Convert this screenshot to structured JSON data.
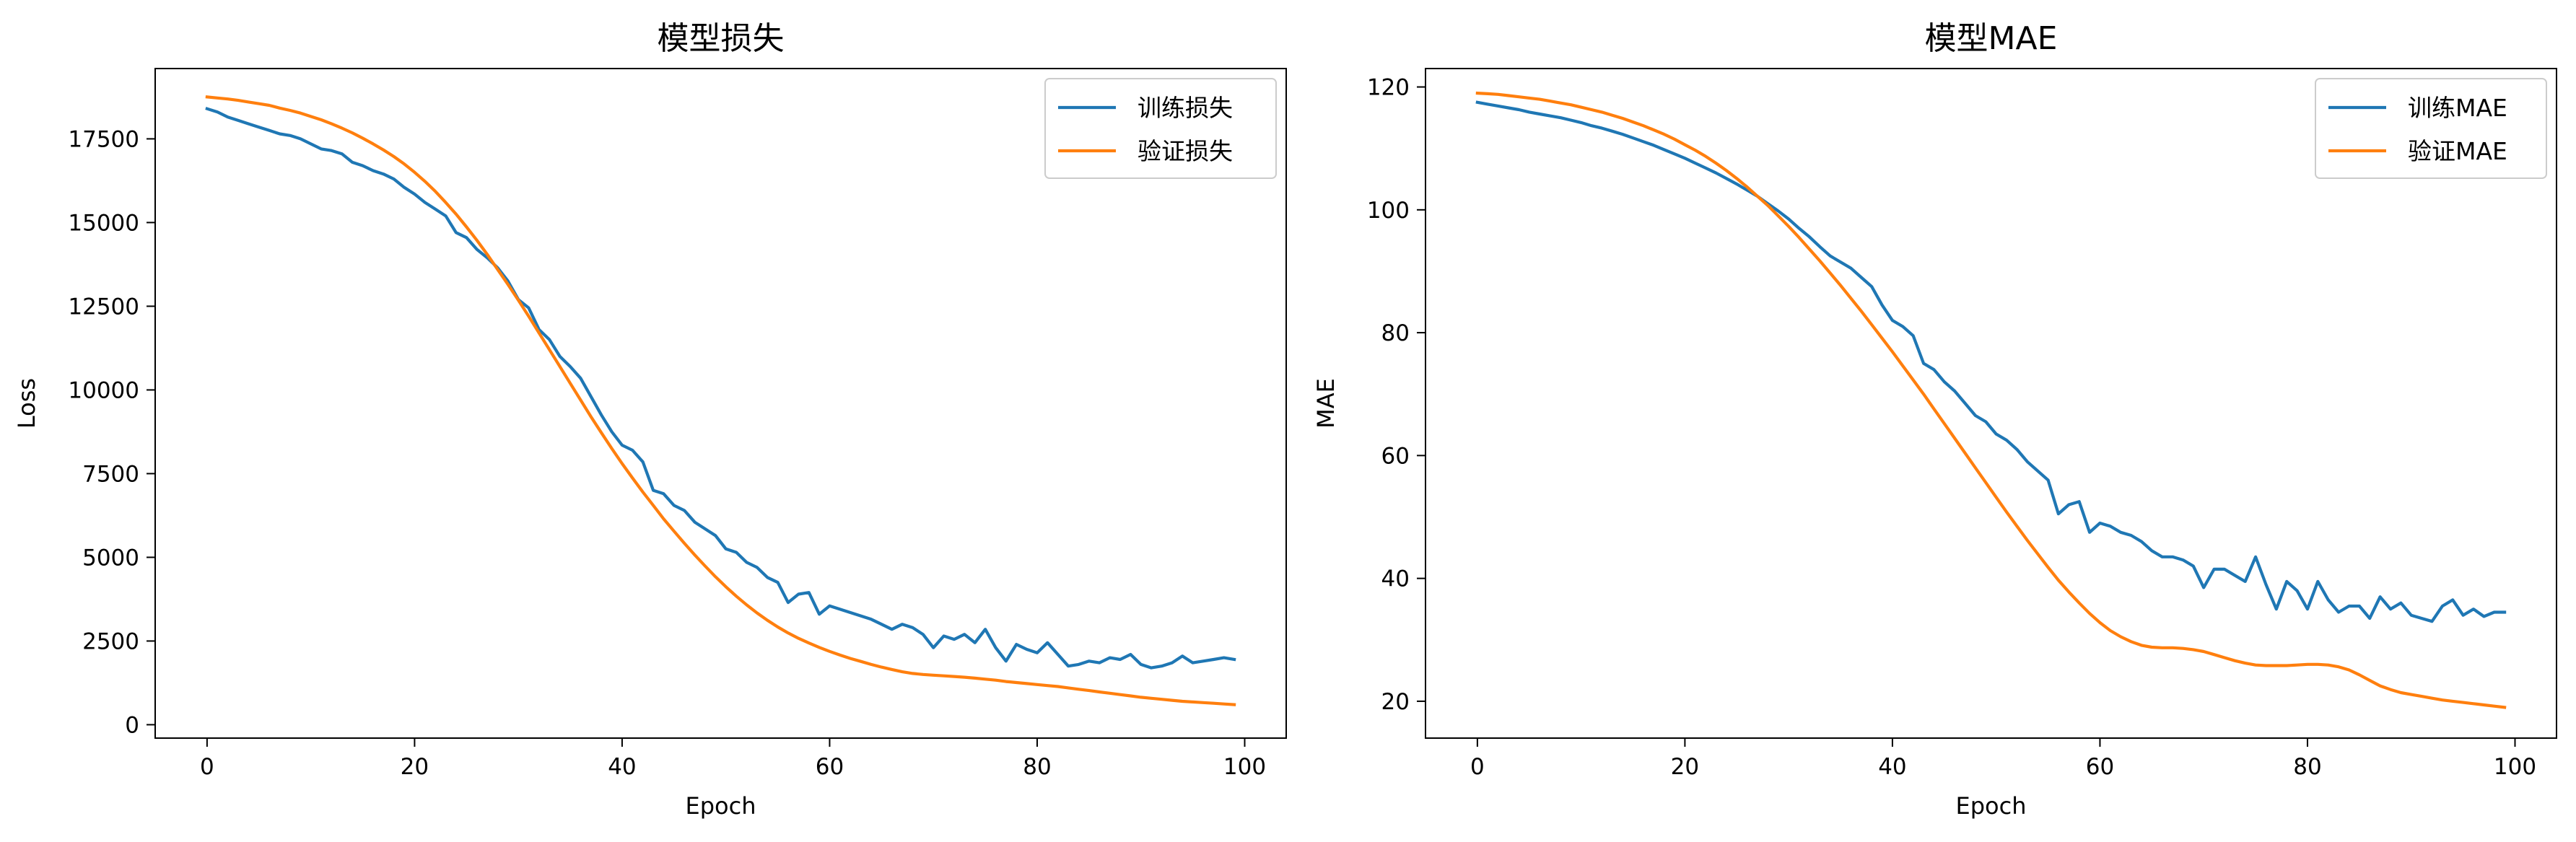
{
  "chart_data": [
    {
      "type": "line",
      "title": "模型损失",
      "xlabel": "Epoch",
      "ylabel": "Loss",
      "xlim": [
        -5,
        104
      ],
      "ylim": [
        -400,
        19600
      ],
      "xticks": [
        0,
        20,
        40,
        60,
        80,
        100
      ],
      "yticks": [
        0,
        2500,
        5000,
        7500,
        10000,
        12500,
        15000,
        17500
      ],
      "grid": false,
      "legend": "top-right",
      "series": [
        {
          "name": "训练损失",
          "color": "#1f77b4",
          "x_start": 0,
          "values": [
            18400,
            18300,
            18150,
            18050,
            17950,
            17850,
            17750,
            17650,
            17600,
            17500,
            17350,
            17200,
            17150,
            17050,
            16800,
            16700,
            16550,
            16450,
            16300,
            16050,
            15850,
            15600,
            15400,
            15200,
            14700,
            14550,
            14200,
            13950,
            13650,
            13250,
            12700,
            12450,
            11800,
            11500,
            11000,
            10700,
            10350,
            9800,
            9250,
            8750,
            8350,
            8200,
            7850,
            7000,
            6900,
            6550,
            6400,
            6050,
            5850,
            5650,
            5250,
            5150,
            4850,
            4700,
            4400,
            4250,
            3650,
            3900,
            3950,
            3300,
            3550,
            3450,
            3350,
            3250,
            3150,
            3000,
            2850,
            3000,
            2900,
            2700,
            2300,
            2650,
            2550,
            2700,
            2450,
            2850,
            2300,
            1900,
            2400,
            2250,
            2150,
            2450,
            2100,
            1750,
            1800,
            1900,
            1850,
            2000,
            1950,
            2100,
            1800,
            1700,
            1750,
            1850,
            2050,
            1850,
            1900,
            1950,
            2000,
            1950
          ]
        },
        {
          "name": "验证损失",
          "color": "#ff7f0e",
          "x_start": 0,
          "values": [
            18750,
            18720,
            18690,
            18650,
            18600,
            18550,
            18500,
            18420,
            18350,
            18270,
            18170,
            18070,
            17950,
            17820,
            17680,
            17520,
            17350,
            17170,
            16970,
            16750,
            16500,
            16230,
            15930,
            15600,
            15250,
            14870,
            14470,
            14050,
            13600,
            13150,
            12680,
            12200,
            11700,
            11200,
            10700,
            10200,
            9700,
            9200,
            8720,
            8250,
            7800,
            7370,
            6950,
            6550,
            6150,
            5780,
            5420,
            5070,
            4740,
            4420,
            4120,
            3840,
            3580,
            3340,
            3120,
            2920,
            2740,
            2580,
            2440,
            2310,
            2190,
            2080,
            1980,
            1890,
            1800,
            1720,
            1650,
            1580,
            1530,
            1500,
            1480,
            1460,
            1440,
            1420,
            1390,
            1360,
            1330,
            1290,
            1260,
            1230,
            1200,
            1170,
            1140,
            1100,
            1060,
            1020,
            980,
            940,
            900,
            860,
            820,
            790,
            760,
            730,
            700,
            680,
            660,
            640,
            620,
            600
          ]
        }
      ]
    },
    {
      "type": "line",
      "title": "模型MAE",
      "xlabel": "Epoch",
      "ylabel": "MAE",
      "xlim": [
        -5,
        104
      ],
      "ylim": [
        14,
        123
      ],
      "xticks": [
        0,
        20,
        40,
        60,
        80,
        100
      ],
      "yticks": [
        20,
        40,
        60,
        80,
        100,
        120
      ],
      "grid": false,
      "legend": "top-right",
      "series": [
        {
          "name": "训练MAE",
          "color": "#1f77b4",
          "x_start": 0,
          "values": [
            117.5,
            117.2,
            116.9,
            116.6,
            116.3,
            115.9,
            115.6,
            115.3,
            115.0,
            114.6,
            114.2,
            113.7,
            113.3,
            112.8,
            112.3,
            111.7,
            111.1,
            110.5,
            109.8,
            109.1,
            108.4,
            107.6,
            106.8,
            106.0,
            105.1,
            104.2,
            103.2,
            102.2,
            101.0,
            99.8,
            98.5,
            97.0,
            95.6,
            94.0,
            92.5,
            91.5,
            90.5,
            89.0,
            87.5,
            84.5,
            82.0,
            81.0,
            79.5,
            75.0,
            74.0,
            72.0,
            70.5,
            68.5,
            66.5,
            65.5,
            63.5,
            62.5,
            61.0,
            59.0,
            57.5,
            56.0,
            50.5,
            52.0,
            52.5,
            47.5,
            49.0,
            48.5,
            47.5,
            47.0,
            46.0,
            44.5,
            43.5,
            43.5,
            43.0,
            42.0,
            38.5,
            41.5,
            41.5,
            40.5,
            39.5,
            43.5,
            39.0,
            35.0,
            39.5,
            38.0,
            35.0,
            39.5,
            36.5,
            34.5,
            35.5,
            35.5,
            33.5,
            37.0,
            35.0,
            36.0,
            34.0,
            33.5,
            33.0,
            35.5,
            36.5,
            34.0,
            35.0,
            33.8,
            34.5,
            34.5
          ]
        },
        {
          "name": "验证MAE",
          "color": "#ff7f0e",
          "x_start": 0,
          "values": [
            119.0,
            118.9,
            118.8,
            118.6,
            118.4,
            118.2,
            118.0,
            117.7,
            117.4,
            117.1,
            116.7,
            116.3,
            115.9,
            115.4,
            114.9,
            114.3,
            113.7,
            113.0,
            112.3,
            111.5,
            110.6,
            109.7,
            108.7,
            107.6,
            106.4,
            105.1,
            103.7,
            102.2,
            100.7,
            99.0,
            97.3,
            95.5,
            93.6,
            91.7,
            89.7,
            87.7,
            85.6,
            83.5,
            81.3,
            79.1,
            76.9,
            74.6,
            72.3,
            70.0,
            67.6,
            65.2,
            62.8,
            60.4,
            58.0,
            55.6,
            53.2,
            50.8,
            48.5,
            46.2,
            44.0,
            41.8,
            39.7,
            37.8,
            36.0,
            34.3,
            32.8,
            31.5,
            30.5,
            29.7,
            29.1,
            28.8,
            28.7,
            28.7,
            28.6,
            28.4,
            28.1,
            27.6,
            27.1,
            26.6,
            26.2,
            25.9,
            25.8,
            25.8,
            25.8,
            25.9,
            26.0,
            26.0,
            25.9,
            25.6,
            25.1,
            24.3,
            23.4,
            22.5,
            21.9,
            21.4,
            21.1,
            20.8,
            20.5,
            20.2,
            20.0,
            19.8,
            19.6,
            19.4,
            19.2,
            19.0
          ]
        }
      ]
    }
  ]
}
